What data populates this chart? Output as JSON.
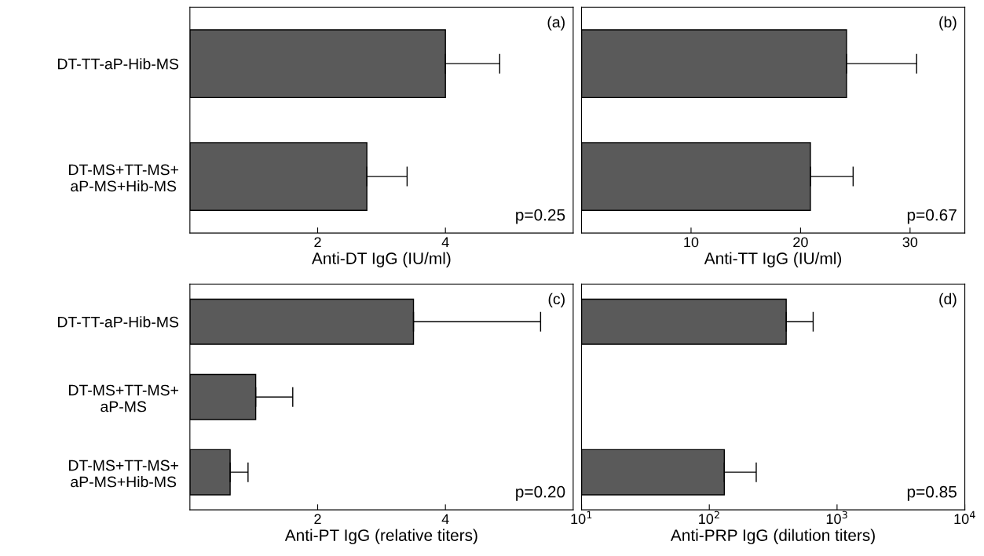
{
  "chart_data": [
    {
      "type": "bar",
      "orientation": "horizontal",
      "categories": [
        "DT-TT-aP-Hib-MS",
        "DT-MS+TT-MS+\naP-MS+Hib-MS"
      ],
      "values": [
        4.0,
        2.77
      ],
      "errors": [
        [
          4.0,
          4.85
        ],
        [
          2.77,
          3.4
        ]
      ],
      "color": "#5a5a5a",
      "xlabel": "Anti-DT IgG (IU/ml)",
      "xlim": [
        0,
        6
      ],
      "xticks": [
        2,
        4
      ],
      "annotations": [
        "(a)",
        "p=0.25"
      ]
    },
    {
      "type": "bar",
      "orientation": "horizontal",
      "categories": [
        null,
        null
      ],
      "values": [
        24.2,
        20.9
      ],
      "errors": [
        [
          24.2,
          30.6
        ],
        [
          20.9,
          24.8
        ]
      ],
      "color": "#5a5a5a",
      "xlabel": "Anti-TT IgG (IU/ml)",
      "xlim": [
        0,
        35
      ],
      "xticks": [
        10,
        20,
        30
      ],
      "tick_labels": "x",
      "annotations": [
        "(b)",
        "p=0.67"
      ]
    },
    {
      "type": "bar",
      "orientation": "horizontal",
      "categories": [
        "DT-TT-aP-Hib-MS",
        "DT-MS+TT-MS+\naP-MS",
        "DT-MS+TT-MS+\naP-MS+Hib-MS"
      ],
      "values": [
        3.5,
        1.03,
        0.63
      ],
      "errors": [
        [
          3.5,
          5.49
        ],
        [
          1.03,
          1.61
        ],
        [
          0.63,
          0.91
        ]
      ],
      "color": "#5a5a5a",
      "xlabel": "Anti-PT IgG (relative titers)",
      "xlim": [
        0,
        6
      ],
      "xticks": [
        2,
        4
      ],
      "annotations": [
        "(c)",
        "p=0.20"
      ]
    },
    {
      "type": "bar",
      "orientation": "horizontal",
      "categories": [
        null,
        null,
        null
      ],
      "values": [
        400,
        null,
        131
      ],
      "errors": [
        [
          400,
          650
        ],
        null,
        [
          131,
          233
        ]
      ],
      "color": "#5a5a5a",
      "xlabel": "Anti-PRP IgG (dilution titers)",
      "log": "x",
      "xlim": [
        10,
        10000
      ],
      "xticks": [
        {
          "value": 10,
          "label": "10$^{1}$"
        },
        {
          "value": 100,
          "label": "10$^{2}$"
        },
        {
          "value": 1000,
          "label": "10$^{3}$"
        },
        {
          "value": 10000,
          "label": "10$^{4}$"
        }
      ],
      "tick_labels": "x",
      "annotations": [
        "(d)",
        "p=0.85"
      ]
    }
  ]
}
